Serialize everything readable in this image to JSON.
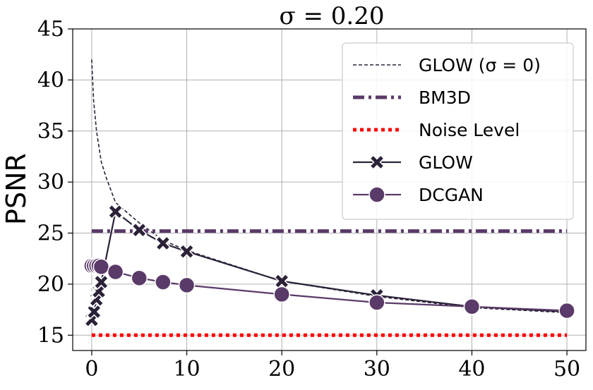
{
  "chart_data": {
    "type": "line",
    "title": "σ = 0.20",
    "xlabel": "",
    "ylabel": "PSNR",
    "xlim": [
      -2,
      52
    ],
    "ylim": [
      13.5,
      45
    ],
    "xticks": [
      0,
      10,
      20,
      30,
      40,
      50
    ],
    "yticks": [
      15,
      20,
      25,
      30,
      35,
      40,
      45
    ],
    "grid": true,
    "legend_position": "top-right",
    "series": [
      {
        "name": "GLOW (σ = 0)",
        "style": "dashed",
        "color": "#2b2238",
        "x": [
          0,
          0.2,
          0.5,
          1,
          1.5,
          2.5,
          5,
          7.5,
          10,
          20,
          30,
          40,
          50
        ],
        "y": [
          42,
          38,
          35,
          32,
          30.5,
          28,
          26,
          24.3,
          23.3,
          20.3,
          18.8,
          17.7,
          17.2
        ]
      },
      {
        "name": "BM3D",
        "style": "dashdot",
        "color": "#5a3a68",
        "x": [
          0,
          50
        ],
        "y": [
          25.2,
          25.2
        ]
      },
      {
        "name": "Noise Level",
        "style": "dotted",
        "color": "#ff0000",
        "x": [
          0,
          50
        ],
        "y": [
          15,
          15
        ]
      },
      {
        "name": "GLOW",
        "style": "solid",
        "marker": "x",
        "color": "#2b2238",
        "x": [
          0,
          0.25,
          0.5,
          0.75,
          1,
          2.5,
          5,
          7.5,
          10,
          20,
          30,
          40,
          50
        ],
        "y": [
          16.5,
          17.3,
          18.5,
          19.3,
          20.2,
          27.1,
          25.3,
          24.0,
          23.2,
          20.3,
          18.9,
          17.8,
          17.3
        ]
      },
      {
        "name": "DCGAN",
        "style": "solid",
        "marker": "o",
        "color": "#5a3a68",
        "x": [
          0,
          0.25,
          0.5,
          0.75,
          1,
          2.5,
          5,
          7.5,
          10,
          20,
          30,
          40,
          50
        ],
        "y": [
          21.8,
          21.8,
          21.8,
          21.8,
          21.7,
          21.2,
          20.6,
          20.2,
          19.9,
          19.0,
          18.2,
          17.8,
          17.4
        ]
      }
    ]
  }
}
